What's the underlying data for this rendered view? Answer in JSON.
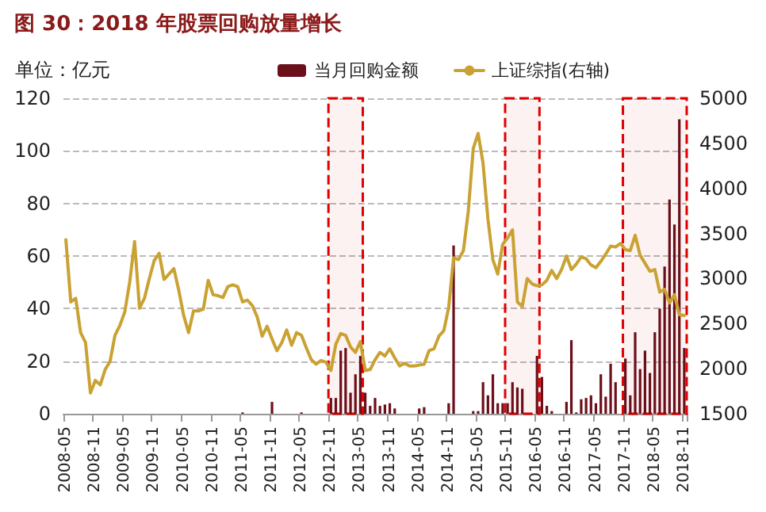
{
  "chart_data": {
    "type": "bar",
    "title": "图 30：2018 年股票回购放量增长",
    "ylabel": "单位：亿元",
    "categories": [
      "2008-05",
      null,
      null,
      null,
      null,
      null,
      "2008-11",
      null,
      null,
      null,
      null,
      null,
      "2009-05",
      null,
      null,
      null,
      null,
      null,
      "2009-11",
      null,
      null,
      null,
      null,
      null,
      "2010-05",
      null,
      null,
      null,
      null,
      null,
      "2010-11",
      null,
      null,
      null,
      null,
      null,
      "2011-05",
      null,
      null,
      null,
      null,
      null,
      "2011-11",
      null,
      null,
      null,
      null,
      null,
      "2012-05",
      null,
      null,
      null,
      null,
      null,
      "2012-11",
      null,
      null,
      null,
      null,
      null,
      "2013-05",
      null,
      null,
      null,
      null,
      null,
      "2013-11",
      null,
      null,
      null,
      null,
      null,
      "2014-05",
      null,
      null,
      null,
      null,
      null,
      "2014-11",
      null,
      null,
      null,
      null,
      null,
      "2015-05",
      null,
      null,
      null,
      null,
      null,
      "2015-11",
      null,
      null,
      null,
      null,
      null,
      "2016-05",
      null,
      null,
      null,
      null,
      null,
      "2016-11",
      null,
      null,
      null,
      null,
      null,
      "2017-05",
      null,
      null,
      null,
      null,
      null,
      "2017-11",
      null,
      null,
      null,
      null,
      null,
      "2018-05",
      null,
      null,
      null,
      null,
      null,
      "2018-11"
    ],
    "series": [
      {
        "name": "当月回购金额",
        "color": "#6b0f1a",
        "values": [
          0,
          0,
          0,
          0,
          0,
          0,
          0,
          0,
          0,
          0,
          0,
          0,
          0,
          0,
          0,
          0,
          0,
          0,
          0,
          0,
          0,
          0,
          0,
          0,
          0,
          0,
          0,
          0,
          0,
          0,
          0,
          0,
          0,
          0,
          0,
          0,
          0.5,
          0,
          0,
          0,
          0,
          0,
          4.5,
          0,
          0,
          0,
          0,
          0,
          0.5,
          0,
          0,
          0,
          0,
          0,
          6,
          6,
          24,
          25,
          8,
          15,
          22,
          8,
          3,
          6,
          3,
          3.5,
          4,
          2,
          0,
          0,
          0,
          0,
          2,
          2.5,
          0,
          0,
          0,
          0,
          4,
          64,
          0,
          0,
          0,
          1,
          1,
          12,
          7,
          15,
          4,
          4,
          4,
          12,
          10,
          9.5,
          0,
          0,
          22,
          14,
          3,
          1,
          0,
          0,
          4.5,
          28,
          0.5,
          5.5,
          6,
          7,
          4,
          15,
          6.5,
          19,
          12,
          0,
          21,
          7,
          31,
          17,
          24,
          15.5,
          31,
          40,
          56,
          81.5,
          72,
          112,
          25
        ]
      },
      {
        "name": "上证综指(右轴)",
        "type": "line",
        "axis": "y2",
        "color": "#c9a233",
        "values": [
          3430,
          2740,
          2780,
          2400,
          2290,
          1730,
          1870,
          1820,
          1990,
          2080,
          2370,
          2480,
          2630,
          2960,
          3410,
          2670,
          2780,
          3000,
          3200,
          3280,
          2990,
          3050,
          3110,
          2870,
          2590,
          2400,
          2640,
          2640,
          2660,
          2980,
          2820,
          2810,
          2790,
          2910,
          2930,
          2910,
          2740,
          2760,
          2700,
          2570,
          2360,
          2470,
          2330,
          2200,
          2290,
          2430,
          2260,
          2400,
          2370,
          2230,
          2100,
          2050,
          2090,
          2070,
          1980,
          2270,
          2390,
          2370,
          2240,
          2180,
          2300,
          1980,
          1990,
          2100,
          2180,
          2140,
          2220,
          2120,
          2030,
          2060,
          2030,
          2030,
          2040,
          2050,
          2200,
          2220,
          2360,
          2420,
          2680,
          3230,
          3210,
          3310,
          3750,
          4440,
          4610,
          4280,
          3660,
          3210,
          3050,
          3380,
          3450,
          3540,
          2740,
          2690,
          3000,
          2940,
          2920,
          2930,
          2980,
          3090,
          3000,
          3100,
          3250,
          3100,
          3160,
          3240,
          3220,
          3150,
          3120,
          3190,
          3270,
          3360,
          3350,
          3390,
          3320,
          3310,
          3480,
          3260,
          3170,
          3080,
          3100,
          2850,
          2880,
          2730,
          2820,
          2600,
          2590
        ]
      }
    ],
    "ylim": [
      0,
      120
    ],
    "yticks": [
      0,
      20,
      40,
      60,
      80,
      100,
      120
    ],
    "y2lim": [
      1500,
      5000
    ],
    "y2ticks": [
      1500,
      2000,
      2500,
      3000,
      3500,
      4000,
      4500,
      5000
    ],
    "grid": "y",
    "legend": "top",
    "marker": "none",
    "bands": [
      {
        "axis": "x",
        "from": "2012-11",
        "to": "2013-05",
        "label": null,
        "color": "#e00000"
      },
      {
        "axis": "x",
        "from": "2015-11",
        "to": "2016-05",
        "label": null,
        "color": "#e00000"
      },
      {
        "axis": "x",
        "from": "2017-11",
        "to": "2018-11",
        "label": null,
        "color": "#e00000"
      }
    ]
  }
}
